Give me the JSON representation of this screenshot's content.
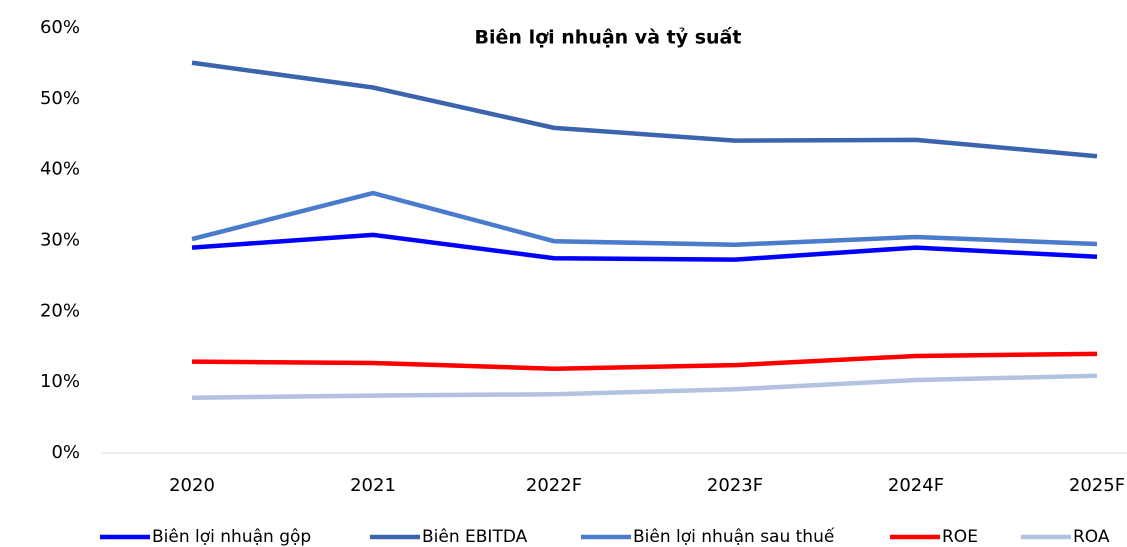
{
  "chart_data": {
    "type": "line",
    "title": "Biên lợi nhuận và tỷ suất",
    "categories": [
      "2020",
      "2021",
      "2022F",
      "2023F",
      "2024F",
      "2025F"
    ],
    "series": [
      {
        "name": "Biên lợi nhuận gộp",
        "color": "#0000ff",
        "values": [
          29.0,
          30.8,
          27.5,
          27.3,
          29.0,
          27.7
        ]
      },
      {
        "name": "Biên EBITDA",
        "color": "#3c64ae",
        "values": [
          55.1,
          51.6,
          45.9,
          44.1,
          44.2,
          41.9
        ]
      },
      {
        "name": "Biên lợi nhuận sau thuế",
        "color": "#4a7bcc",
        "values": [
          30.2,
          36.7,
          29.9,
          29.4,
          30.5,
          29.5
        ]
      },
      {
        "name": "ROE",
        "color": "#ff0000",
        "values": [
          12.9,
          12.7,
          11.9,
          12.4,
          13.7,
          14.0
        ]
      },
      {
        "name": "ROA",
        "color": "#b4c2e2",
        "values": [
          7.8,
          8.1,
          8.3,
          9.0,
          10.3,
          10.9
        ]
      }
    ],
    "ylim": [
      0,
      60
    ],
    "yticks": [
      {
        "value": 0,
        "label": "0%"
      },
      {
        "value": 10,
        "label": "10%"
      },
      {
        "value": 20,
        "label": "20%"
      },
      {
        "value": 30,
        "label": "30%"
      },
      {
        "value": 40,
        "label": "40%"
      },
      {
        "value": 50,
        "label": "50%"
      },
      {
        "value": 60,
        "label": "60%"
      }
    ],
    "grid": false,
    "legend": "bottom"
  }
}
